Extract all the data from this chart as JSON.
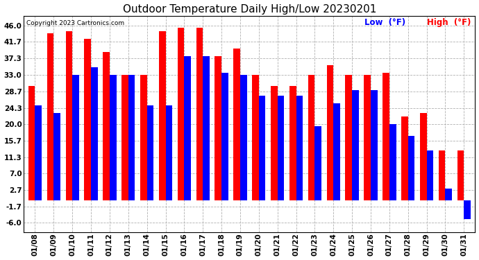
{
  "title": "Outdoor Temperature Daily High/Low 20230201",
  "copyright": "Copyright 2023 Cartronics.com",
  "dates": [
    "01/08",
    "01/09",
    "01/10",
    "01/11",
    "01/12",
    "01/13",
    "01/14",
    "01/15",
    "01/16",
    "01/17",
    "01/18",
    "01/19",
    "01/20",
    "01/21",
    "01/22",
    "01/23",
    "01/24",
    "01/25",
    "01/26",
    "01/27",
    "01/28",
    "01/29",
    "01/30",
    "01/31"
  ],
  "high": [
    30.0,
    44.0,
    44.5,
    42.5,
    39.0,
    33.0,
    33.0,
    44.5,
    45.5,
    45.5,
    38.0,
    40.0,
    33.0,
    30.0,
    30.0,
    33.0,
    35.5,
    33.0,
    33.0,
    33.5,
    22.0,
    23.0,
    13.0,
    13.0
  ],
  "low": [
    25.0,
    23.0,
    33.0,
    35.0,
    33.0,
    33.0,
    25.0,
    25.0,
    38.0,
    38.0,
    33.5,
    33.0,
    27.5,
    27.5,
    27.5,
    19.5,
    25.5,
    29.0,
    29.0,
    20.0,
    17.0,
    13.0,
    3.0,
    -5.0
  ],
  "high_color": "#ff0000",
  "low_color": "#0000ff",
  "bg_color": "#ffffff",
  "grid_color": "#b0b0b0",
  "yticks": [
    46.0,
    41.7,
    37.3,
    33.0,
    28.7,
    24.3,
    20.0,
    15.7,
    11.3,
    7.0,
    2.7,
    -1.7,
    -6.0
  ],
  "ylim": [
    -8.5,
    48.5
  ],
  "title_fontsize": 11,
  "tick_fontsize": 7.5,
  "legend_fontsize": 8.5,
  "bar_width": 0.36
}
